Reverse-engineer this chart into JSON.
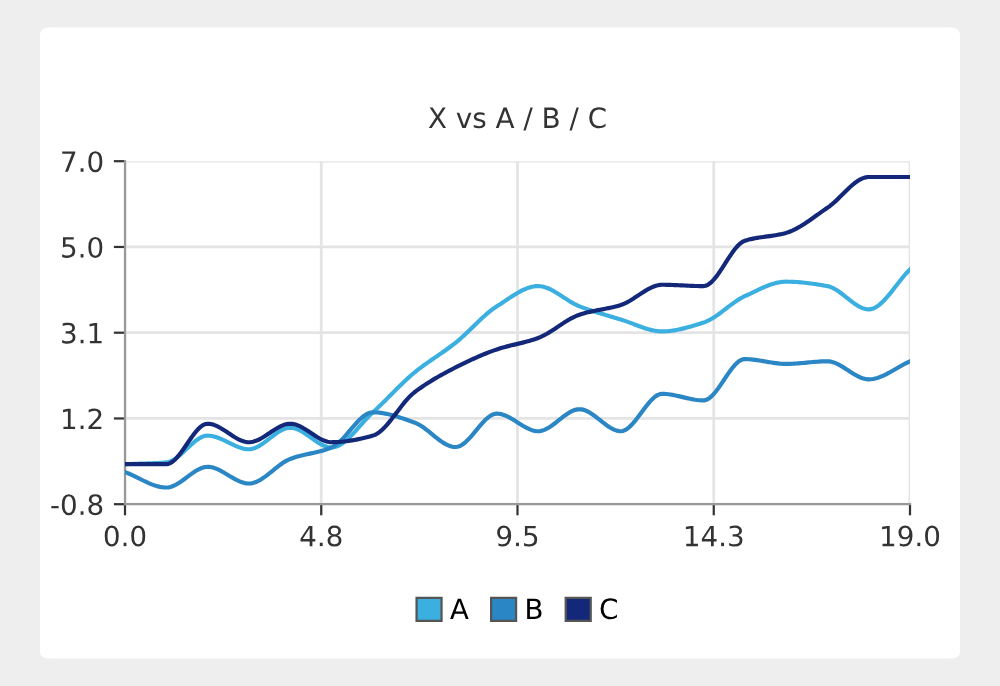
{
  "chart_data": {
    "type": "line",
    "title": "X vs A / B / C",
    "x": [
      0,
      1,
      2,
      3,
      4,
      5,
      6,
      7,
      8,
      9,
      10,
      11,
      12,
      13,
      14,
      15,
      16,
      17,
      18,
      19
    ],
    "series": [
      {
        "name": "A",
        "color": "#3bb0e0",
        "values": [
          0.11,
          0.15,
          0.76,
          0.45,
          0.94,
          0.49,
          1.29,
          2.19,
          2.87,
          3.7,
          4.16,
          3.7,
          3.4,
          3.13,
          3.33,
          3.93,
          4.26,
          4.16,
          3.63,
          4.54
        ]
      },
      {
        "name": "B",
        "color": "#2a86c4",
        "values": [
          -0.07,
          -0.42,
          0.05,
          -0.33,
          0.23,
          0.49,
          1.29,
          1.06,
          0.5,
          1.26,
          0.86,
          1.36,
          0.86,
          1.71,
          1.56,
          2.5,
          2.39,
          2.45,
          2.04,
          2.45
        ]
      },
      {
        "name": "C",
        "color": "#14287a",
        "values": [
          0.11,
          0.11,
          1.03,
          0.61,
          1.03,
          0.61,
          0.76,
          1.74,
          2.31,
          2.72,
          2.98,
          3.51,
          3.73,
          4.19,
          4.16,
          5.19,
          5.37,
          5.94,
          6.64,
          6.64
        ]
      }
    ],
    "xlim": [
      0,
      19
    ],
    "xticks": [
      {
        "value": 0,
        "label": "0.0"
      },
      {
        "value": 4.75,
        "label": "4.8"
      },
      {
        "value": 9.5,
        "label": "9.5"
      },
      {
        "value": 14.25,
        "label": "14.3"
      },
      {
        "value": 19,
        "label": "19.0"
      }
    ],
    "ylim": [
      -0.8,
      7.0
    ],
    "yticks": [
      {
        "value": -0.8,
        "label": "-0.8"
      },
      {
        "value": 1.15,
        "label": "1.2"
      },
      {
        "value": 3.1,
        "label": "3.1"
      },
      {
        "value": 5.05,
        "label": "5.0"
      },
      {
        "value": 7.0,
        "label": "7.0"
      }
    ],
    "grid": true,
    "legend": "bottom",
    "marker": "none",
    "line_style": "solid"
  }
}
